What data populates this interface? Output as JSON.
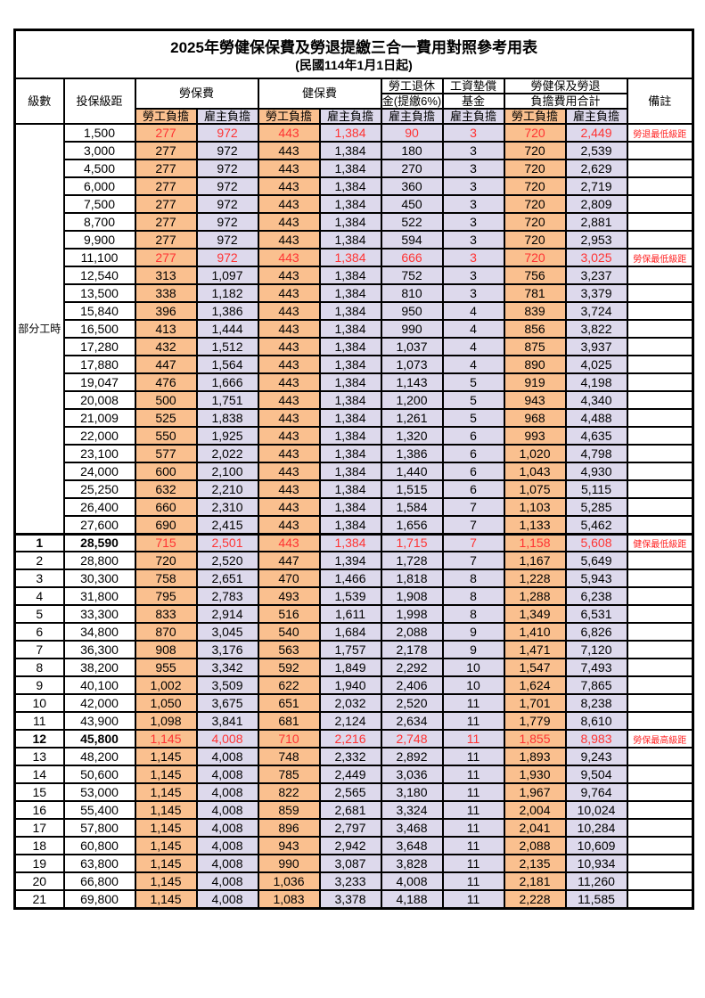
{
  "title": "2025年勞健保保費及勞退提繳三合一費用對照參考用表",
  "subtitle": "(民國114年1月1日起)",
  "header": {
    "level": "級數",
    "bracket": "投保級距",
    "labor_fee": "勞保費",
    "health_fee": "健保費",
    "pension_line1": "勞工退休",
    "pension_line2": "金(提繳6%)",
    "wage_fund_line1": "工資墊償",
    "wage_fund_line2": "基金",
    "total_line1": "勞健保及勞退",
    "total_line2": "負擔費用合計",
    "note": "備註",
    "employee_share": "勞工負擔",
    "employer_share": "雇主負擔"
  },
  "part_time": {
    "label": "部分工時",
    "row_count": 23
  },
  "colors": {
    "employee_bg": "#FAC08F",
    "employer_bg": "#DDD9EC",
    "highlight_text": "#FF3333",
    "note_text": "#FF2222",
    "border": "#000000"
  },
  "rows": [
    {
      "level": "",
      "bracket": "1,500",
      "labor_emp": "277",
      "labor_er": "972",
      "health_emp": "443",
      "health_er": "1,384",
      "pension_er": "90",
      "wage_er": "3",
      "total_emp": "720",
      "total_er": "2,449",
      "note": "勞退最低級距",
      "red": true,
      "bold": false
    },
    {
      "level": "",
      "bracket": "3,000",
      "labor_emp": "277",
      "labor_er": "972",
      "health_emp": "443",
      "health_er": "1,384",
      "pension_er": "180",
      "wage_er": "3",
      "total_emp": "720",
      "total_er": "2,539",
      "note": "",
      "red": false,
      "bold": false
    },
    {
      "level": "",
      "bracket": "4,500",
      "labor_emp": "277",
      "labor_er": "972",
      "health_emp": "443",
      "health_er": "1,384",
      "pension_er": "270",
      "wage_er": "3",
      "total_emp": "720",
      "total_er": "2,629",
      "note": "",
      "red": false,
      "bold": false
    },
    {
      "level": "",
      "bracket": "6,000",
      "labor_emp": "277",
      "labor_er": "972",
      "health_emp": "443",
      "health_er": "1,384",
      "pension_er": "360",
      "wage_er": "3",
      "total_emp": "720",
      "total_er": "2,719",
      "note": "",
      "red": false,
      "bold": false
    },
    {
      "level": "",
      "bracket": "7,500",
      "labor_emp": "277",
      "labor_er": "972",
      "health_emp": "443",
      "health_er": "1,384",
      "pension_er": "450",
      "wage_er": "3",
      "total_emp": "720",
      "total_er": "2,809",
      "note": "",
      "red": false,
      "bold": false
    },
    {
      "level": "",
      "bracket": "8,700",
      "labor_emp": "277",
      "labor_er": "972",
      "health_emp": "443",
      "health_er": "1,384",
      "pension_er": "522",
      "wage_er": "3",
      "total_emp": "720",
      "total_er": "2,881",
      "note": "",
      "red": false,
      "bold": false
    },
    {
      "level": "",
      "bracket": "9,900",
      "labor_emp": "277",
      "labor_er": "972",
      "health_emp": "443",
      "health_er": "1,384",
      "pension_er": "594",
      "wage_er": "3",
      "total_emp": "720",
      "total_er": "2,953",
      "note": "",
      "red": false,
      "bold": false
    },
    {
      "level": "",
      "bracket": "11,100",
      "labor_emp": "277",
      "labor_er": "972",
      "health_emp": "443",
      "health_er": "1,384",
      "pension_er": "666",
      "wage_er": "3",
      "total_emp": "720",
      "total_er": "3,025",
      "note": "勞保最低級距",
      "red": true,
      "bold": false
    },
    {
      "level": "",
      "bracket": "12,540",
      "labor_emp": "313",
      "labor_er": "1,097",
      "health_emp": "443",
      "health_er": "1,384",
      "pension_er": "752",
      "wage_er": "3",
      "total_emp": "756",
      "total_er": "3,237",
      "note": "",
      "red": false,
      "bold": false
    },
    {
      "level": "",
      "bracket": "13,500",
      "labor_emp": "338",
      "labor_er": "1,182",
      "health_emp": "443",
      "health_er": "1,384",
      "pension_er": "810",
      "wage_er": "3",
      "total_emp": "781",
      "total_er": "3,379",
      "note": "",
      "red": false,
      "bold": false
    },
    {
      "level": "",
      "bracket": "15,840",
      "labor_emp": "396",
      "labor_er": "1,386",
      "health_emp": "443",
      "health_er": "1,384",
      "pension_er": "950",
      "wage_er": "4",
      "total_emp": "839",
      "total_er": "3,724",
      "note": "",
      "red": false,
      "bold": false
    },
    {
      "level": "",
      "bracket": "16,500",
      "labor_emp": "413",
      "labor_er": "1,444",
      "health_emp": "443",
      "health_er": "1,384",
      "pension_er": "990",
      "wage_er": "4",
      "total_emp": "856",
      "total_er": "3,822",
      "note": "",
      "red": false,
      "bold": false
    },
    {
      "level": "",
      "bracket": "17,280",
      "labor_emp": "432",
      "labor_er": "1,512",
      "health_emp": "443",
      "health_er": "1,384",
      "pension_er": "1,037",
      "wage_er": "4",
      "total_emp": "875",
      "total_er": "3,937",
      "note": "",
      "red": false,
      "bold": false
    },
    {
      "level": "",
      "bracket": "17,880",
      "labor_emp": "447",
      "labor_er": "1,564",
      "health_emp": "443",
      "health_er": "1,384",
      "pension_er": "1,073",
      "wage_er": "4",
      "total_emp": "890",
      "total_er": "4,025",
      "note": "",
      "red": false,
      "bold": false
    },
    {
      "level": "",
      "bracket": "19,047",
      "labor_emp": "476",
      "labor_er": "1,666",
      "health_emp": "443",
      "health_er": "1,384",
      "pension_er": "1,143",
      "wage_er": "5",
      "total_emp": "919",
      "total_er": "4,198",
      "note": "",
      "red": false,
      "bold": false
    },
    {
      "level": "",
      "bracket": "20,008",
      "labor_emp": "500",
      "labor_er": "1,751",
      "health_emp": "443",
      "health_er": "1,384",
      "pension_er": "1,200",
      "wage_er": "5",
      "total_emp": "943",
      "total_er": "4,340",
      "note": "",
      "red": false,
      "bold": false
    },
    {
      "level": "",
      "bracket": "21,009",
      "labor_emp": "525",
      "labor_er": "1,838",
      "health_emp": "443",
      "health_er": "1,384",
      "pension_er": "1,261",
      "wage_er": "5",
      "total_emp": "968",
      "total_er": "4,488",
      "note": "",
      "red": false,
      "bold": false
    },
    {
      "level": "",
      "bracket": "22,000",
      "labor_emp": "550",
      "labor_er": "1,925",
      "health_emp": "443",
      "health_er": "1,384",
      "pension_er": "1,320",
      "wage_er": "6",
      "total_emp": "993",
      "total_er": "4,635",
      "note": "",
      "red": false,
      "bold": false
    },
    {
      "level": "",
      "bracket": "23,100",
      "labor_emp": "577",
      "labor_er": "2,022",
      "health_emp": "443",
      "health_er": "1,384",
      "pension_er": "1,386",
      "wage_er": "6",
      "total_emp": "1,020",
      "total_er": "4,798",
      "note": "",
      "red": false,
      "bold": false
    },
    {
      "level": "",
      "bracket": "24,000",
      "labor_emp": "600",
      "labor_er": "2,100",
      "health_emp": "443",
      "health_er": "1,384",
      "pension_er": "1,440",
      "wage_er": "6",
      "total_emp": "1,043",
      "total_er": "4,930",
      "note": "",
      "red": false,
      "bold": false
    },
    {
      "level": "",
      "bracket": "25,250",
      "labor_emp": "632",
      "labor_er": "2,210",
      "health_emp": "443",
      "health_er": "1,384",
      "pension_er": "1,515",
      "wage_er": "6",
      "total_emp": "1,075",
      "total_er": "5,115",
      "note": "",
      "red": false,
      "bold": false
    },
    {
      "level": "",
      "bracket": "26,400",
      "labor_emp": "660",
      "labor_er": "2,310",
      "health_emp": "443",
      "health_er": "1,384",
      "pension_er": "1,584",
      "wage_er": "7",
      "total_emp": "1,103",
      "total_er": "5,285",
      "note": "",
      "red": false,
      "bold": false
    },
    {
      "level": "",
      "bracket": "27,600",
      "labor_emp": "690",
      "labor_er": "2,415",
      "health_emp": "443",
      "health_er": "1,384",
      "pension_er": "1,656",
      "wage_er": "7",
      "total_emp": "1,133",
      "total_er": "5,462",
      "note": "",
      "red": false,
      "bold": false
    },
    {
      "level": "1",
      "bracket": "28,590",
      "labor_emp": "715",
      "labor_er": "2,501",
      "health_emp": "443",
      "health_er": "1,384",
      "pension_er": "1,715",
      "wage_er": "7",
      "total_emp": "1,158",
      "total_er": "5,608",
      "note": "健保最低級距",
      "red": true,
      "bold": true,
      "section_start": true
    },
    {
      "level": "2",
      "bracket": "28,800",
      "labor_emp": "720",
      "labor_er": "2,520",
      "health_emp": "447",
      "health_er": "1,394",
      "pension_er": "1,728",
      "wage_er": "7",
      "total_emp": "1,167",
      "total_er": "5,649",
      "note": "",
      "red": false,
      "bold": false
    },
    {
      "level": "3",
      "bracket": "30,300",
      "labor_emp": "758",
      "labor_er": "2,651",
      "health_emp": "470",
      "health_er": "1,466",
      "pension_er": "1,818",
      "wage_er": "8",
      "total_emp": "1,228",
      "total_er": "5,943",
      "note": "",
      "red": false,
      "bold": false
    },
    {
      "level": "4",
      "bracket": "31,800",
      "labor_emp": "795",
      "labor_er": "2,783",
      "health_emp": "493",
      "health_er": "1,539",
      "pension_er": "1,908",
      "wage_er": "8",
      "total_emp": "1,288",
      "total_er": "6,238",
      "note": "",
      "red": false,
      "bold": false
    },
    {
      "level": "5",
      "bracket": "33,300",
      "labor_emp": "833",
      "labor_er": "2,914",
      "health_emp": "516",
      "health_er": "1,611",
      "pension_er": "1,998",
      "wage_er": "8",
      "total_emp": "1,349",
      "total_er": "6,531",
      "note": "",
      "red": false,
      "bold": false
    },
    {
      "level": "6",
      "bracket": "34,800",
      "labor_emp": "870",
      "labor_er": "3,045",
      "health_emp": "540",
      "health_er": "1,684",
      "pension_er": "2,088",
      "wage_er": "9",
      "total_emp": "1,410",
      "total_er": "6,826",
      "note": "",
      "red": false,
      "bold": false
    },
    {
      "level": "7",
      "bracket": "36,300",
      "labor_emp": "908",
      "labor_er": "3,176",
      "health_emp": "563",
      "health_er": "1,757",
      "pension_er": "2,178",
      "wage_er": "9",
      "total_emp": "1,471",
      "total_er": "7,120",
      "note": "",
      "red": false,
      "bold": false
    },
    {
      "level": "8",
      "bracket": "38,200",
      "labor_emp": "955",
      "labor_er": "3,342",
      "health_emp": "592",
      "health_er": "1,849",
      "pension_er": "2,292",
      "wage_er": "10",
      "total_emp": "1,547",
      "total_er": "7,493",
      "note": "",
      "red": false,
      "bold": false
    },
    {
      "level": "9",
      "bracket": "40,100",
      "labor_emp": "1,002",
      "labor_er": "3,509",
      "health_emp": "622",
      "health_er": "1,940",
      "pension_er": "2,406",
      "wage_er": "10",
      "total_emp": "1,624",
      "total_er": "7,865",
      "note": "",
      "red": false,
      "bold": false
    },
    {
      "level": "10",
      "bracket": "42,000",
      "labor_emp": "1,050",
      "labor_er": "3,675",
      "health_emp": "651",
      "health_er": "2,032",
      "pension_er": "2,520",
      "wage_er": "11",
      "total_emp": "1,701",
      "total_er": "8,238",
      "note": "",
      "red": false,
      "bold": false
    },
    {
      "level": "11",
      "bracket": "43,900",
      "labor_emp": "1,098",
      "labor_er": "3,841",
      "health_emp": "681",
      "health_er": "2,124",
      "pension_er": "2,634",
      "wage_er": "11",
      "total_emp": "1,779",
      "total_er": "8,610",
      "note": "",
      "red": false,
      "bold": false
    },
    {
      "level": "12",
      "bracket": "45,800",
      "labor_emp": "1,145",
      "labor_er": "4,008",
      "health_emp": "710",
      "health_er": "2,216",
      "pension_er": "2,748",
      "wage_er": "11",
      "total_emp": "1,855",
      "total_er": "8,983",
      "note": "勞保最高級距",
      "red": true,
      "bold": true
    },
    {
      "level": "13",
      "bracket": "48,200",
      "labor_emp": "1,145",
      "labor_er": "4,008",
      "health_emp": "748",
      "health_er": "2,332",
      "pension_er": "2,892",
      "wage_er": "11",
      "total_emp": "1,893",
      "total_er": "9,243",
      "note": "",
      "red": false,
      "bold": false
    },
    {
      "level": "14",
      "bracket": "50,600",
      "labor_emp": "1,145",
      "labor_er": "4,008",
      "health_emp": "785",
      "health_er": "2,449",
      "pension_er": "3,036",
      "wage_er": "11",
      "total_emp": "1,930",
      "total_er": "9,504",
      "note": "",
      "red": false,
      "bold": false
    },
    {
      "level": "15",
      "bracket": "53,000",
      "labor_emp": "1,145",
      "labor_er": "4,008",
      "health_emp": "822",
      "health_er": "2,565",
      "pension_er": "3,180",
      "wage_er": "11",
      "total_emp": "1,967",
      "total_er": "9,764",
      "note": "",
      "red": false,
      "bold": false
    },
    {
      "level": "16",
      "bracket": "55,400",
      "labor_emp": "1,145",
      "labor_er": "4,008",
      "health_emp": "859",
      "health_er": "2,681",
      "pension_er": "3,324",
      "wage_er": "11",
      "total_emp": "2,004",
      "total_er": "10,024",
      "note": "",
      "red": false,
      "bold": false
    },
    {
      "level": "17",
      "bracket": "57,800",
      "labor_emp": "1,145",
      "labor_er": "4,008",
      "health_emp": "896",
      "health_er": "2,797",
      "pension_er": "3,468",
      "wage_er": "11",
      "total_emp": "2,041",
      "total_er": "10,284",
      "note": "",
      "red": false,
      "bold": false
    },
    {
      "level": "18",
      "bracket": "60,800",
      "labor_emp": "1,145",
      "labor_er": "4,008",
      "health_emp": "943",
      "health_er": "2,942",
      "pension_er": "3,648",
      "wage_er": "11",
      "total_emp": "2,088",
      "total_er": "10,609",
      "note": "",
      "red": false,
      "bold": false
    },
    {
      "level": "19",
      "bracket": "63,800",
      "labor_emp": "1,145",
      "labor_er": "4,008",
      "health_emp": "990",
      "health_er": "3,087",
      "pension_er": "3,828",
      "wage_er": "11",
      "total_emp": "2,135",
      "total_er": "10,934",
      "note": "",
      "red": false,
      "bold": false
    },
    {
      "level": "20",
      "bracket": "66,800",
      "labor_emp": "1,145",
      "labor_er": "4,008",
      "health_emp": "1,036",
      "health_er": "3,233",
      "pension_er": "4,008",
      "wage_er": "11",
      "total_emp": "2,181",
      "total_er": "11,260",
      "note": "",
      "red": false,
      "bold": false
    },
    {
      "level": "21",
      "bracket": "69,800",
      "labor_emp": "1,145",
      "labor_er": "4,008",
      "health_emp": "1,083",
      "health_er": "3,378",
      "pension_er": "4,188",
      "wage_er": "11",
      "total_emp": "2,228",
      "total_er": "11,585",
      "note": "",
      "red": false,
      "bold": false
    }
  ]
}
